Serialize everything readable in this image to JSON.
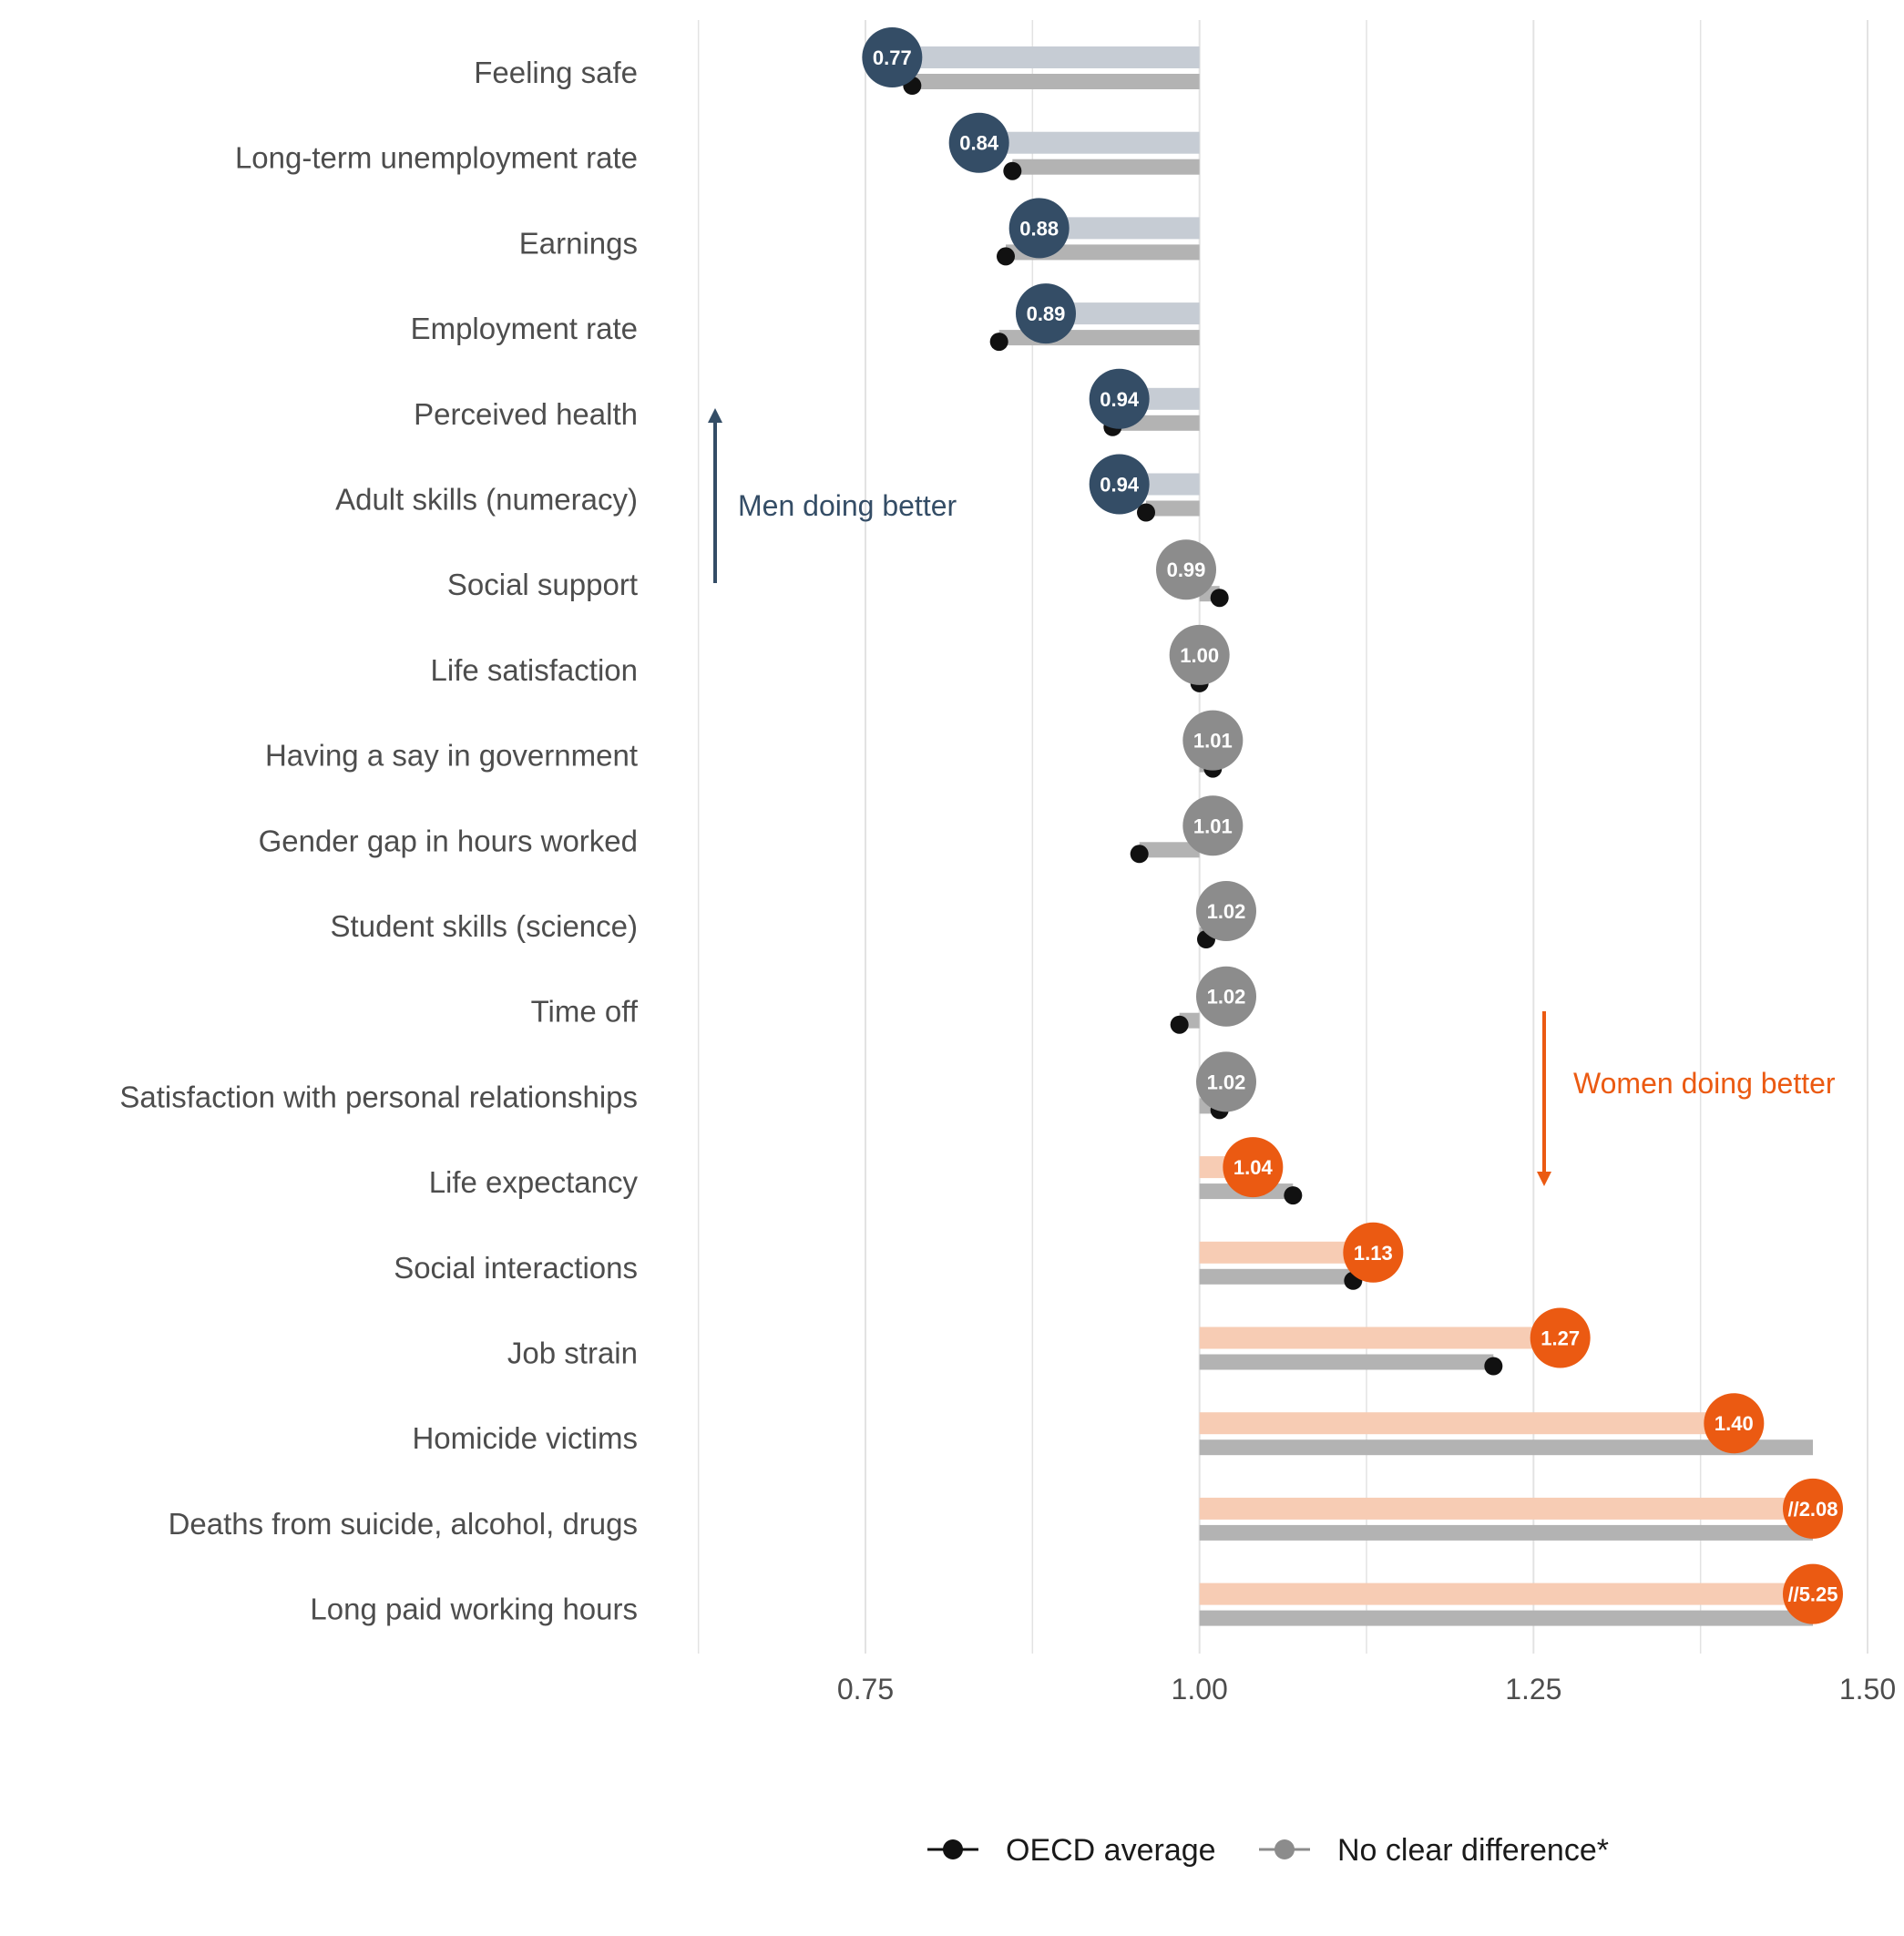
{
  "chart_data": {
    "type": "dot-bar",
    "orientation": "horizontal",
    "baseline": 1.0,
    "xlim": [
      0.6,
      1.5
    ],
    "xticks": [
      "0.75",
      "1.00",
      "1.25",
      "1.50"
    ],
    "xtick_values": [
      0.75,
      1.0,
      1.25,
      1.5
    ],
    "grid": true,
    "colors": {
      "men": "#344d66",
      "women": "#eb5a12",
      "neutral": "#8c8c8c",
      "oecd": "#111111",
      "men_bar": "#c6ccd4",
      "women_bar": "#f7ccb4",
      "oecd_bar": "#b3b3b3",
      "grid": "#e3e3e3"
    },
    "categories": [
      "Feeling safe",
      "Long-term unemployment rate",
      "Earnings",
      "Employment rate",
      "Perceived health",
      "Adult skills (numeracy)",
      "Social support",
      "Life satisfaction",
      "Having a say in government",
      "Gender gap in hours worked",
      "Student skills (science)",
      "Time off",
      "Satisfaction with personal relationships",
      "Life expectancy ",
      "Social interactions",
      "Job strain",
      "Homicide victims",
      "Deaths from suicide, alcohol, drugs",
      "Long paid working hours"
    ],
    "values": [
      0.77,
      0.835,
      0.88,
      0.885,
      0.94,
      0.94,
      0.99,
      1.0,
      1.01,
      1.01,
      1.02,
      1.02,
      1.02,
      1.04,
      1.13,
      1.27,
      1.4,
      2.08,
      5.25
    ],
    "value_labels": [
      "0.77",
      "0.84",
      "0.88",
      "0.89",
      "0.94",
      "0.94",
      "0.99",
      "1.00",
      "1.01",
      "1.01",
      "1.02",
      "1.02",
      "1.02",
      "1.04",
      "1.13",
      "1.27",
      "1.40",
      "//2.08",
      "//5.25"
    ],
    "groups": [
      "men",
      "men",
      "men",
      "men",
      "men",
      "men",
      "neutral",
      "neutral",
      "neutral",
      "neutral",
      "neutral",
      "neutral",
      "neutral",
      "women",
      "women",
      "women",
      "women",
      "women",
      "women"
    ],
    "oecd_average": [
      0.785,
      0.86,
      0.855,
      0.85,
      0.935,
      0.96,
      1.015,
      1.0,
      1.01,
      0.955,
      1.005,
      0.985,
      1.015,
      1.07,
      1.115,
      1.22,
      1.48,
      1.48,
      1.48
    ],
    "oecd_marker_shown": [
      true,
      true,
      true,
      true,
      true,
      true,
      true,
      true,
      true,
      true,
      true,
      true,
      true,
      true,
      true,
      true,
      false,
      false,
      false
    ],
    "annotations": {
      "men": "Men doing better",
      "women": "Women doing better"
    },
    "legend": {
      "position": "bottom",
      "items": [
        {
          "label": "OECD average",
          "color": "#111111"
        },
        {
          "label": "No clear difference*",
          "color": "#8c8c8c"
        }
      ]
    }
  }
}
